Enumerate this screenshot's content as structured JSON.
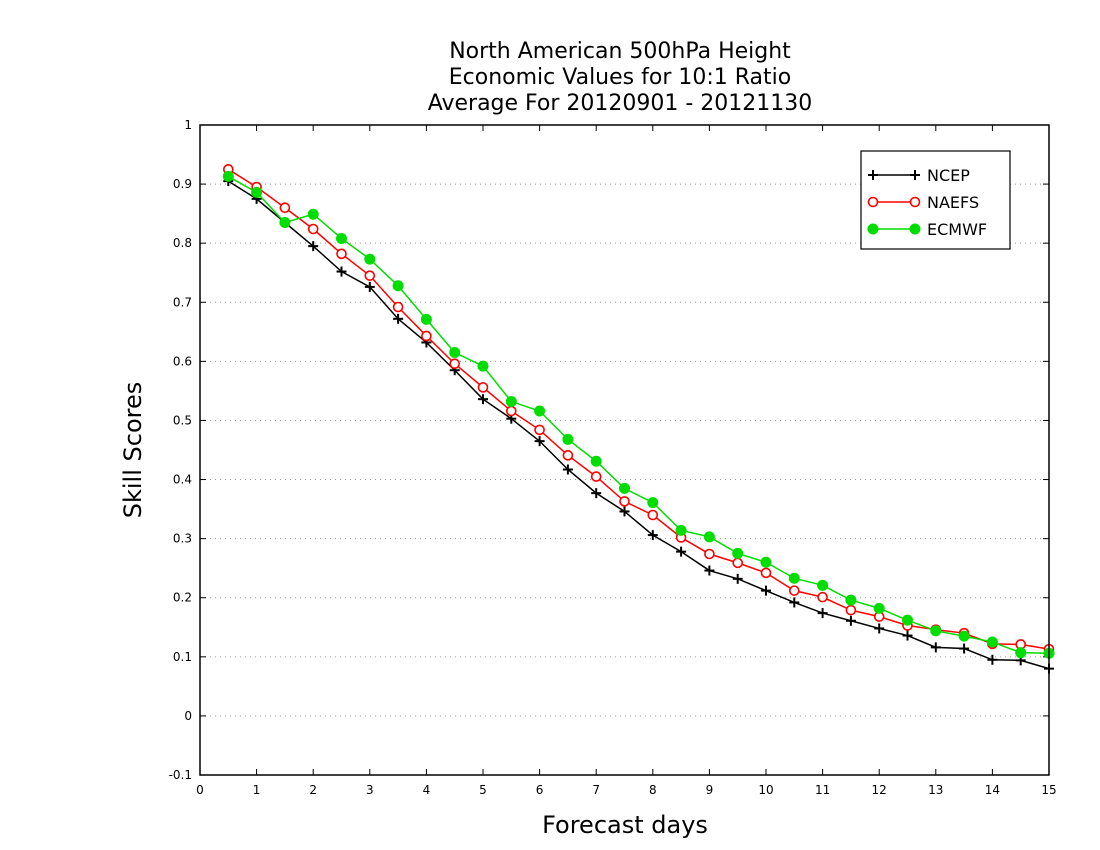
{
  "chart_data": {
    "type": "line",
    "title": [
      "North American 500hPa Height",
      "Economic Values for 10:1 Ratio",
      "Average For 20120901 - 20121130"
    ],
    "xlabel": "Forecast days",
    "ylabel": "Skill Scores",
    "xlim": [
      0,
      15
    ],
    "ylim": [
      -0.1,
      1
    ],
    "xticks": [
      "0",
      "1",
      "2",
      "3",
      "4",
      "5",
      "6",
      "7",
      "8",
      "9",
      "10",
      "11",
      "12",
      "13",
      "14",
      "15"
    ],
    "yticks": [
      "-0.1",
      "0",
      "0.1",
      "0.2",
      "0.3",
      "0.4",
      "0.5",
      "0.6",
      "0.7",
      "0.8",
      "0.9",
      "1"
    ],
    "grid": "horizontal dotted",
    "legend_position": "top-right",
    "x": [
      0.5,
      1,
      1.5,
      2,
      2.5,
      3,
      3.5,
      4,
      4.5,
      5,
      5.5,
      6,
      6.5,
      7,
      7.5,
      8,
      8.5,
      9,
      9.5,
      10,
      10.5,
      11,
      11.5,
      12,
      12.5,
      13,
      13.5,
      14,
      14.5,
      15
    ],
    "series": [
      {
        "name": "NCEP",
        "color": "#000000",
        "marker": "plus",
        "values": [
          0.905,
          0.875,
          0.835,
          0.795,
          0.752,
          0.726,
          0.672,
          0.632,
          0.585,
          0.536,
          0.503,
          0.465,
          0.417,
          0.377,
          0.346,
          0.306,
          0.278,
          0.246,
          0.232,
          0.212,
          0.192,
          0.174,
          0.161,
          0.148,
          0.136,
          0.116,
          0.114,
          0.095,
          0.094,
          0.08
        ]
      },
      {
        "name": "NAEFS",
        "color": "#ff0000",
        "marker": "open-circle",
        "values": [
          0.925,
          0.895,
          0.86,
          0.824,
          0.782,
          0.745,
          0.692,
          0.643,
          0.596,
          0.556,
          0.516,
          0.484,
          0.441,
          0.405,
          0.363,
          0.34,
          0.302,
          0.274,
          0.259,
          0.242,
          0.212,
          0.201,
          0.179,
          0.168,
          0.153,
          0.146,
          0.14,
          0.122,
          0.121,
          0.113
        ]
      },
      {
        "name": "ECMWF",
        "color": "#00dd00",
        "marker": "filled-circle",
        "values": [
          0.913,
          0.886,
          0.835,
          0.849,
          0.808,
          0.773,
          0.728,
          0.671,
          0.615,
          0.592,
          0.532,
          0.516,
          0.468,
          0.431,
          0.385,
          0.361,
          0.314,
          0.303,
          0.275,
          0.26,
          0.233,
          0.221,
          0.196,
          0.182,
          0.162,
          0.144,
          0.135,
          0.125,
          0.107,
          0.106
        ]
      }
    ]
  }
}
